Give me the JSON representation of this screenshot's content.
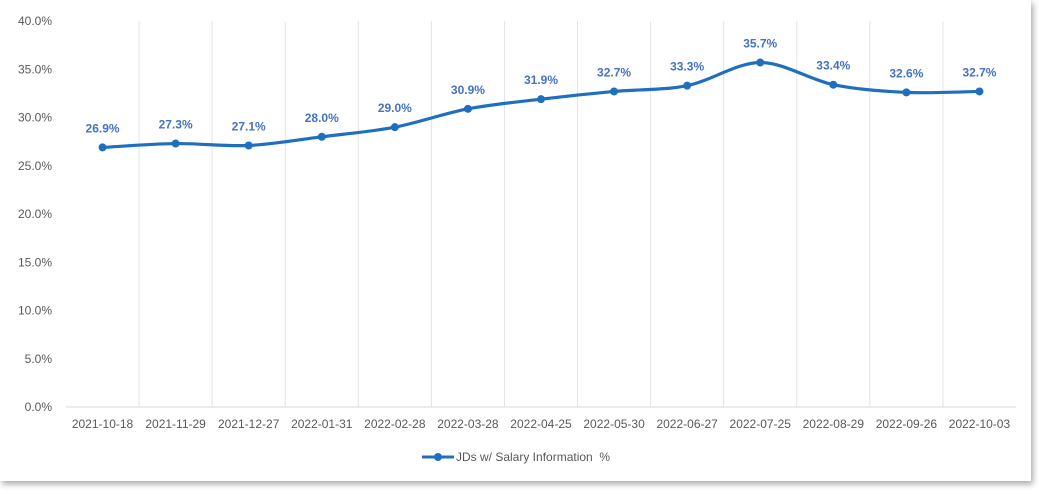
{
  "chart_data": {
    "type": "line",
    "title": "",
    "xlabel": "",
    "ylabel": "",
    "categories": [
      "2021-10-18",
      "2021-11-29",
      "2021-12-27",
      "2022-01-31",
      "2022-02-28",
      "2022-03-28",
      "2022-04-25",
      "2022-05-30",
      "2022-06-27",
      "2022-07-25",
      "2022-08-29",
      "2022-09-26",
      "2022-10-03"
    ],
    "series": [
      {
        "name": "JDs w/ Salary Information  %",
        "values": [
          26.9,
          27.3,
          27.1,
          28.0,
          29.0,
          30.9,
          31.9,
          32.7,
          33.3,
          35.7,
          33.4,
          32.6,
          32.7
        ],
        "labels": [
          "26.9%",
          "27.3%",
          "27.1%",
          "28.0%",
          "29.0%",
          "30.9%",
          "31.9%",
          "32.7%",
          "33.3%",
          "35.7%",
          "33.4%",
          "32.6%",
          "32.7%"
        ],
        "color": "#1f6fc0",
        "smooth": true
      }
    ],
    "ylim": [
      0,
      40
    ],
    "yticks": [
      "0.0%",
      "5.0%",
      "10.0%",
      "15.0%",
      "20.0%",
      "25.0%",
      "30.0%",
      "35.0%",
      "40.0%"
    ],
    "grid": "vertical",
    "legend_position": "bottom",
    "label_color": "#4472c4"
  }
}
